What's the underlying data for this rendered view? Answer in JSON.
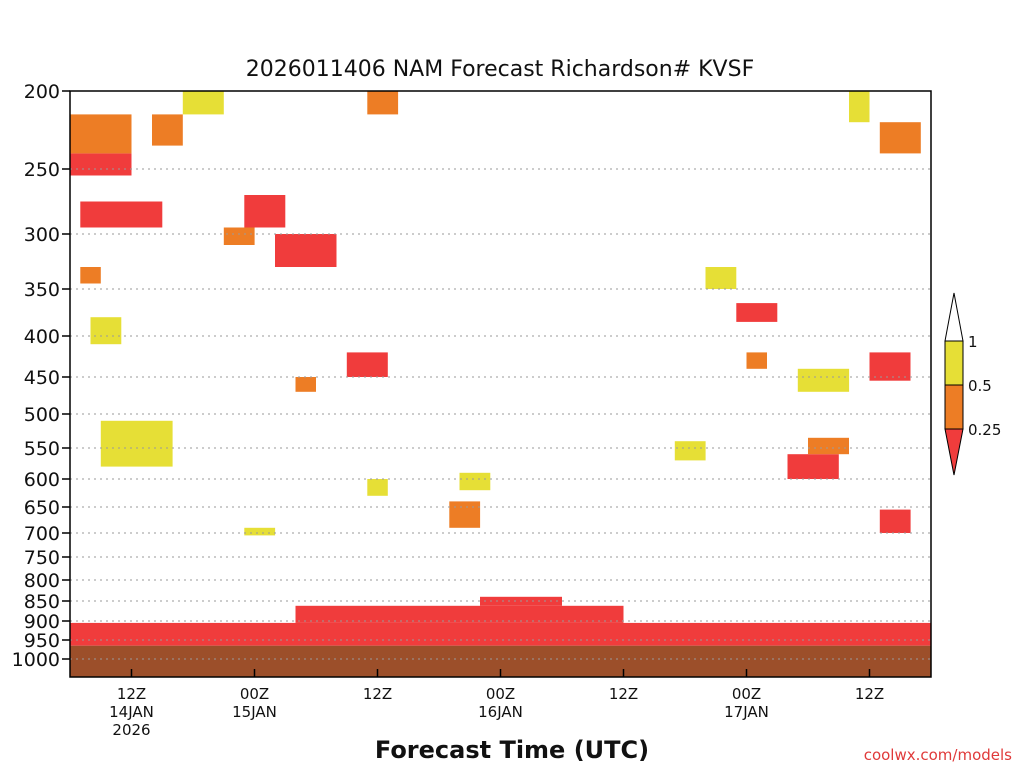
{
  "chart_data": {
    "type": "heatmap",
    "title": "2026011406 NAM Forecast Richardson# KVSF",
    "xlabel": "Forecast Time (UTC)",
    "ylabel": "",
    "credit": "coolwx.com/models",
    "x_ticks": [
      {
        "hour": 6,
        "lines": [
          "12Z",
          "14JAN",
          "2026"
        ]
      },
      {
        "hour": 18,
        "lines": [
          "00Z",
          "15JAN"
        ]
      },
      {
        "hour": 30,
        "lines": [
          "12Z"
        ]
      },
      {
        "hour": 42,
        "lines": [
          "00Z",
          "16JAN"
        ]
      },
      {
        "hour": 54,
        "lines": [
          "12Z"
        ]
      },
      {
        "hour": 66,
        "lines": [
          "00Z",
          "17JAN"
        ]
      },
      {
        "hour": 78,
        "lines": [
          "12Z"
        ]
      }
    ],
    "xlim": [
      0,
      84
    ],
    "y_levels": [
      200,
      250,
      300,
      350,
      400,
      450,
      500,
      550,
      600,
      650,
      700,
      750,
      800,
      850,
      900,
      950,
      1000
    ],
    "ylim": [
      200,
      1030
    ],
    "legend": {
      "position": "right",
      "labels": [
        "1",
        "0.5",
        "0.25"
      ],
      "colors": {
        "low": "#f03c3c",
        "mid": "#ed7d25",
        "high": "#e6df36",
        "ground": "#9c4f2a"
      }
    },
    "categories": [
      "< 0.25",
      "0.25-0.5",
      "0.5-1",
      "> 1"
    ],
    "series": [
      {
        "name": "Ri < 0.25",
        "color": "#f03c3c",
        "regions": [
          {
            "hours": [
              0,
              84
            ],
            "hpa": [
              905,
              965
            ]
          },
          {
            "hours": [
              22,
              54
            ],
            "hpa": [
              862,
              905
            ]
          },
          {
            "hours": [
              40,
              48
            ],
            "hpa": [
              840,
              862
            ]
          },
          {
            "hours": [
              1,
              9
            ],
            "hpa": [
              275,
              295
            ]
          },
          {
            "hours": [
              0,
              6
            ],
            "hpa": [
              240,
              255
            ]
          },
          {
            "hours": [
              17,
              21
            ],
            "hpa": [
              270,
              295
            ]
          },
          {
            "hours": [
              20,
              26
            ],
            "hpa": [
              300,
              330
            ]
          },
          {
            "hours": [
              65,
              69
            ],
            "hpa": [
              365,
              385
            ]
          },
          {
            "hours": [
              27,
              31
            ],
            "hpa": [
              420,
              450
            ]
          },
          {
            "hours": [
              70,
              75
            ],
            "hpa": [
              560,
              600
            ]
          },
          {
            "hours": [
              78,
              82
            ],
            "hpa": [
              420,
              455
            ]
          },
          {
            "hours": [
              79,
              82
            ],
            "hpa": [
              655,
              700
            ]
          }
        ]
      },
      {
        "name": "Ri 0.25-0.5",
        "color": "#ed7d25",
        "regions": [
          {
            "hours": [
              0,
              6
            ],
            "hpa": [
              215,
              240
            ]
          },
          {
            "hours": [
              8,
              11
            ],
            "hpa": [
              215,
              235
            ]
          },
          {
            "hours": [
              1,
              3
            ],
            "hpa": [
              330,
              345
            ]
          },
          {
            "hours": [
              37,
              40
            ],
            "hpa": [
              640,
              690
            ]
          },
          {
            "hours": [
              29,
              32
            ],
            "hpa": [
              200,
              215
            ]
          },
          {
            "hours": [
              79,
              83
            ],
            "hpa": [
              220,
              240
            ]
          },
          {
            "hours": [
              15,
              18
            ],
            "hpa": [
              295,
              310
            ]
          },
          {
            "hours": [
              66,
              68
            ],
            "hpa": [
              420,
              440
            ]
          },
          {
            "hours": [
              22,
              24
            ],
            "hpa": [
              450,
              470
            ]
          },
          {
            "hours": [
              72,
              76
            ],
            "hpa": [
              535,
              560
            ]
          }
        ]
      },
      {
        "name": "Ri 0.5-1",
        "color": "#e6df36",
        "regions": [
          {
            "hours": [
              3,
              10
            ],
            "hpa": [
              510,
              580
            ]
          },
          {
            "hours": [
              2,
              5
            ],
            "hpa": [
              380,
              410
            ]
          },
          {
            "hours": [
              11,
              15
            ],
            "hpa": [
              200,
              215
            ]
          },
          {
            "hours": [
              76,
              78
            ],
            "hpa": [
              200,
              220
            ]
          },
          {
            "hours": [
              38,
              41
            ],
            "hpa": [
              590,
              620
            ]
          },
          {
            "hours": [
              59,
              62
            ],
            "hpa": [
              540,
              570
            ]
          },
          {
            "hours": [
              62,
              65
            ],
            "hpa": [
              330,
              350
            ]
          },
          {
            "hours": [
              71,
              76
            ],
            "hpa": [
              440,
              470
            ]
          },
          {
            "hours": [
              29,
              31
            ],
            "hpa": [
              600,
              630
            ]
          },
          {
            "hours": [
              17,
              20
            ],
            "hpa": [
              690,
              705
            ]
          }
        ]
      },
      {
        "name": "Ground",
        "color": "#9c4f2a",
        "regions": [
          {
            "hours": [
              0,
              84
            ],
            "hpa": [
              965,
              1030
            ]
          }
        ]
      }
    ]
  }
}
